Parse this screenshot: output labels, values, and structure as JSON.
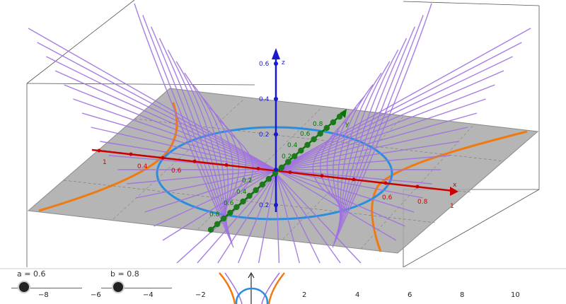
{
  "sliders": [
    {
      "label": "a = 0.6",
      "value": 0.6
    },
    {
      "label": "b = 0.8",
      "value": 0.8
    }
  ],
  "colors": {
    "x_axis": "#cc0000",
    "y_axis": "#007700",
    "z_axis": "#0000cc",
    "surface": "#a070e0",
    "ellipse": "#2a8ee0",
    "hyperbola": "#f07a10",
    "plane": "#a0a0a0"
  },
  "axes3d": {
    "x": {
      "name": "x",
      "ticks": [
        "0.6",
        "0.8",
        "1",
        "0.6",
        "0.4",
        "1"
      ]
    },
    "y": {
      "name": "y",
      "ticks": [
        "0.8",
        "0.6",
        "0.4",
        "0.2",
        "0.2",
        "0.4",
        "0.6",
        "0.8"
      ]
    },
    "z": {
      "name": "z",
      "ticks": [
        "0.6",
        "0.4",
        "0.2",
        "0.2"
      ]
    }
  },
  "axis2d": {
    "ticks": [
      "−8",
      "−6",
      "−4",
      "−2",
      "2",
      "4",
      "6",
      "8",
      "10"
    ]
  }
}
